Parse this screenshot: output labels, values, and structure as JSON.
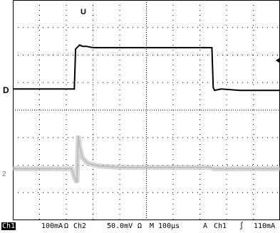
{
  "chart_data": {
    "type": "line",
    "divisions": {
      "x": 10,
      "y": 8
    },
    "grid": true,
    "trigger_marker": "U",
    "ch1_marker": "D",
    "ch2_marker": "2",
    "series": [
      {
        "channel": "Ch1",
        "color": "#000000",
        "t": [
          0,
          2.3,
          2.35,
          2.5,
          2.6,
          2.75,
          3.0,
          5.0,
          7.0,
          7.45,
          7.5,
          7.55,
          7.8,
          8.5,
          10
        ],
        "v": [
          0,
          0,
          1.45,
          1.6,
          1.55,
          1.55,
          1.5,
          1.5,
          1.5,
          1.5,
          0.05,
          -0.05,
          0.0,
          -0.05,
          -0.05
        ]
      },
      {
        "channel": "Ch2",
        "color": "#b8b8b8",
        "t": [
          0,
          2.2,
          2.3,
          2.4,
          2.45,
          2.5,
          2.6,
          2.8,
          3.2,
          4.0,
          5.5,
          7.4,
          7.5,
          10
        ],
        "v": [
          0,
          0,
          -0.3,
          -0.5,
          1.2,
          0.8,
          0.4,
          0.2,
          0.1,
          0.05,
          0.05,
          0.05,
          0,
          0
        ]
      }
    ]
  },
  "status": {
    "ch1_label": "Ch1",
    "ch1_scale": "100mA",
    "ch1_coupling": "Ω",
    "ch2_label": "Ch2",
    "ch2_scale": "50.0mV",
    "ch2_coupling": "Ω",
    "timebase": "M 100µs",
    "trig_mode": "A",
    "trig_source": "Ch1",
    "trig_slope": "∫",
    "trig_level": "110mA"
  }
}
